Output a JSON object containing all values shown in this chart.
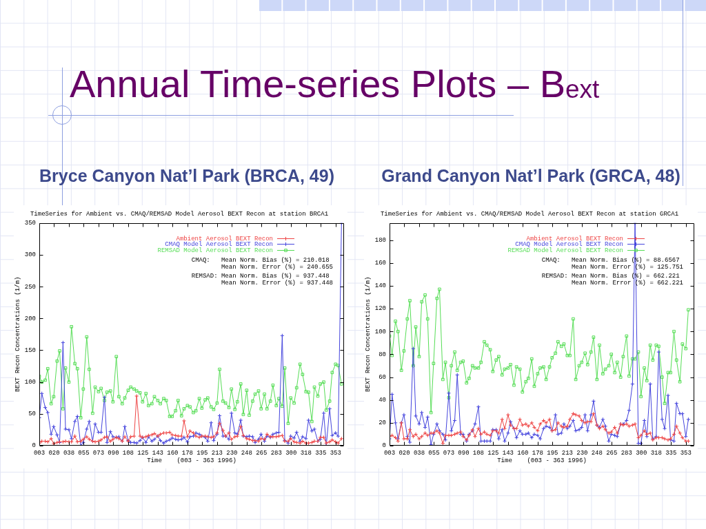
{
  "chart_data": [
    {
      "type": "other",
      "title": "Annual Time-series Plots – B$_{ext}$"
    },
    {
      "type": "line",
      "title": "TimeSeries for Ambient vs. CMAQ/REMSAD Model Aerosol BEXT Recon at station BRCA1",
      "subtitle": "Bryce Canyon Nat’l Park (BRCA, 49)",
      "xlabel": "Time    (003 - 363 1996)",
      "ylabel": "BEXT Recon Concentrations (1/m)",
      "x": [
        3,
        6,
        10,
        13,
        17,
        20,
        24,
        27,
        31,
        34,
        38,
        41,
        45,
        48,
        52,
        55,
        59,
        62,
        66,
        69,
        73,
        76,
        80,
        83,
        87,
        90,
        94,
        97,
        101,
        104,
        108,
        111,
        115,
        118,
        122,
        125,
        129,
        132,
        136,
        139,
        143,
        146,
        150,
        153,
        157,
        160,
        164,
        167,
        171,
        174,
        178,
        181,
        185,
        188,
        192,
        195,
        199,
        202,
        206,
        209,
        213,
        216,
        220,
        223,
        227,
        230,
        234,
        237,
        241,
        244,
        248,
        251,
        255,
        258,
        262,
        265,
        269,
        272,
        276,
        279,
        283,
        286,
        290,
        293,
        297,
        300,
        304,
        307,
        311,
        314,
        318,
        321,
        325,
        328,
        332,
        335,
        339,
        342,
        346,
        349,
        353,
        356,
        360
      ],
      "xlim": [
        3,
        363
      ],
      "xticks": [
        {
          "value": 3,
          "label": "003"
        },
        {
          "value": 20.5,
          "label": "020"
        },
        {
          "value": 38,
          "label": "038"
        },
        {
          "value": 55.5,
          "label": "055"
        },
        {
          "value": 73,
          "label": "073"
        },
        {
          "value": 90.5,
          "label": "090"
        },
        {
          "value": 108,
          "label": "108"
        },
        {
          "value": 125.5,
          "label": "125"
        },
        {
          "value": 143,
          "label": "143"
        },
        {
          "value": 160.5,
          "label": "160"
        },
        {
          "value": 178,
          "label": "178"
        },
        {
          "value": 195.5,
          "label": "195"
        },
        {
          "value": 213,
          "label": "213"
        },
        {
          "value": 230.5,
          "label": "230"
        },
        {
          "value": 248,
          "label": "248"
        },
        {
          "value": 265.5,
          "label": "265"
        },
        {
          "value": 283,
          "label": "283"
        },
        {
          "value": 300.5,
          "label": "300"
        },
        {
          "value": 318,
          "label": "318"
        },
        {
          "value": 335.5,
          "label": "335"
        },
        {
          "value": 353,
          "label": "353"
        }
      ],
      "ylim": [
        0,
        350
      ],
      "yticks": [
        0,
        50,
        100,
        150,
        200,
        250,
        300,
        350
      ],
      "legend": "top right",
      "series": [
        {
          "name": "Ambient Aerosol BEXT Recon",
          "color": "#ee4444",
          "marker": "cross",
          "values": [
            4,
            7,
            7,
            6,
            11,
            3,
            5,
            6,
            6,
            7,
            6,
            6,
            15,
            6,
            7,
            10,
            14,
            10,
            7,
            6,
            7,
            9,
            13,
            14,
            7,
            10,
            13,
            11,
            7,
            14,
            7,
            14,
            15,
            78,
            15,
            13,
            14,
            16,
            17,
            19,
            15,
            18,
            20,
            20,
            21,
            17,
            16,
            15,
            15,
            39,
            14,
            23,
            20,
            15,
            13,
            15,
            15,
            14,
            13,
            14,
            20,
            35,
            24,
            15,
            20,
            10,
            14,
            15,
            30,
            16,
            11,
            10,
            8,
            8,
            7,
            11,
            10,
            18,
            14,
            14,
            14,
            15,
            16,
            7,
            7,
            11,
            6,
            5,
            4,
            7,
            4,
            4,
            5,
            7,
            7,
            13,
            13,
            4,
            6,
            9,
            6,
            4,
            11
          ]
        },
        {
          "name": "CMAQ Model Aerosol BEXT Recon",
          "color": "#4444dd",
          "marker": "cross",
          "values": [
            44,
            82,
            60,
            52,
            18,
            30,
            17,
            5,
            162,
            26,
            25,
            11,
            38,
            46,
            0,
            5,
            26,
            38,
            7,
            34,
            21,
            21,
            76,
            5,
            22,
            14,
            13,
            14,
            7,
            30,
            8,
            5,
            5,
            4,
            8,
            13,
            5,
            14,
            7,
            10,
            15,
            8,
            4,
            7,
            9,
            12,
            10,
            9,
            10,
            13,
            6,
            14,
            15,
            20,
            18,
            15,
            13,
            7,
            36,
            8,
            18,
            47,
            15,
            15,
            10,
            51,
            20,
            18,
            40,
            15,
            14,
            15,
            14,
            5,
            10,
            18,
            7,
            15,
            13,
            18,
            20,
            21,
            173,
            8,
            4,
            15,
            12,
            21,
            7,
            14,
            11,
            40,
            23,
            26,
            7,
            10,
            51,
            0,
            58,
            16,
            20,
            15,
            350
          ]
        },
        {
          "name": "REMSAD Model Aerosol BEXT Recon",
          "color": "#55dd55",
          "marker": "square",
          "values": [
            109,
            100,
            103,
            121,
            66,
            77,
            133,
            149,
            58,
            122,
            100,
            187,
            129,
            121,
            44,
            89,
            171,
            120,
            51,
            92,
            85,
            90,
            71,
            84,
            86,
            69,
            140,
            77,
            66,
            75,
            87,
            92,
            89,
            86,
            83,
            69,
            82,
            63,
            66,
            77,
            71,
            66,
            74,
            71,
            46,
            46,
            55,
            71,
            47,
            58,
            63,
            61,
            52,
            55,
            74,
            59,
            72,
            75,
            61,
            57,
            67,
            120,
            70,
            67,
            60,
            89,
            57,
            69,
            97,
            49,
            87,
            48,
            70,
            81,
            86,
            58,
            81,
            58,
            70,
            95,
            63,
            74,
            62,
            122,
            35,
            75,
            67,
            91,
            128,
            112,
            85,
            84,
            38,
            92,
            78,
            97,
            100,
            56,
            70,
            115,
            128,
            126,
            97
          ]
        }
      ],
      "annotations": [
        "CMAQ:   Mean Norm. Bias (%) = 210.018",
        "Mean Norm. Error (%) = 240.655",
        "REMSAD: Mean Norm. Bias (%) = 937.448",
        "Mean Norm. Error (%) = 937.448"
      ]
    },
    {
      "type": "line",
      "title": "TimeSeries for Ambient vs. CMAQ/REMSAD Model Aerosol BEXT Recon at station GRCA1",
      "subtitle": "Grand Canyon Nat’l Park (GRCA, 48)",
      "xlabel": "Time    (003 - 363 1996)",
      "ylabel": "BEXT Recon Concentrations (1/m)",
      "x": [
        3,
        6,
        10,
        13,
        17,
        20,
        24,
        27,
        31,
        34,
        38,
        41,
        45,
        48,
        52,
        55,
        59,
        62,
        66,
        69,
        73,
        76,
        80,
        83,
        87,
        90,
        94,
        97,
        101,
        104,
        108,
        111,
        115,
        118,
        122,
        125,
        129,
        132,
        136,
        139,
        143,
        146,
        150,
        153,
        157,
        160,
        164,
        167,
        171,
        174,
        178,
        181,
        185,
        188,
        192,
        195,
        199,
        202,
        206,
        209,
        213,
        216,
        220,
        223,
        227,
        230,
        234,
        237,
        241,
        244,
        248,
        251,
        255,
        258,
        262,
        265,
        269,
        272,
        276,
        279,
        283,
        286,
        290,
        293,
        297,
        300,
        304,
        307,
        311,
        314,
        318,
        321,
        325,
        328,
        332,
        335,
        339,
        342,
        346,
        349,
        353,
        356
      ],
      "xlim": [
        3,
        363
      ],
      "xticks": [
        {
          "value": 3,
          "label": "003"
        },
        {
          "value": 20.5,
          "label": "020"
        },
        {
          "value": 38,
          "label": "038"
        },
        {
          "value": 55.5,
          "label": "055"
        },
        {
          "value": 73,
          "label": "073"
        },
        {
          "value": 90.5,
          "label": "090"
        },
        {
          "value": 108,
          "label": "108"
        },
        {
          "value": 125.5,
          "label": "125"
        },
        {
          "value": 143,
          "label": "143"
        },
        {
          "value": 160.5,
          "label": "160"
        },
        {
          "value": 178,
          "label": "178"
        },
        {
          "value": 195.5,
          "label": "195"
        },
        {
          "value": 213,
          "label": "213"
        },
        {
          "value": 230.5,
          "label": "230"
        },
        {
          "value": 248,
          "label": "248"
        },
        {
          "value": 265.5,
          "label": "265"
        },
        {
          "value": 283,
          "label": "283"
        },
        {
          "value": 300.5,
          "label": "300"
        },
        {
          "value": 318,
          "label": "318"
        },
        {
          "value": 335.5,
          "label": "335"
        },
        {
          "value": 353,
          "label": "353"
        }
      ],
      "ylim": [
        0,
        195
      ],
      "yticks": [
        0,
        20,
        40,
        60,
        80,
        100,
        120,
        140,
        160,
        180
      ],
      "legend": "top right",
      "series": [
        {
          "name": "Ambient Aerosol BEXT Recon",
          "color": "#ee4444",
          "marker": "cross",
          "values": [
            8,
            9,
            7,
            4,
            20,
            6,
            6,
            14,
            8,
            10,
            6,
            8,
            11,
            9,
            11,
            11,
            13,
            11,
            2,
            9,
            9,
            9,
            10,
            11,
            12,
            8,
            5,
            9,
            14,
            8,
            15,
            10,
            12,
            10,
            9,
            13,
            13,
            11,
            23,
            15,
            27,
            18,
            15,
            15,
            23,
            18,
            19,
            17,
            20,
            16,
            13,
            19,
            22,
            20,
            23,
            13,
            14,
            20,
            17,
            16,
            17,
            23,
            28,
            27,
            26,
            22,
            20,
            21,
            21,
            28,
            18,
            15,
            17,
            14,
            11,
            12,
            16,
            11,
            19,
            18,
            19,
            17,
            18,
            19,
            7,
            9,
            13,
            10,
            11,
            5,
            7,
            7,
            7,
            6,
            5,
            6,
            10,
            17,
            11,
            7,
            4,
            4
          ]
        },
        {
          "name": "CMAQ Model Aerosol BEXT Recon",
          "color": "#4444dd",
          "marker": "cross",
          "values": [
            6,
            45,
            20,
            6,
            20,
            27,
            8,
            3,
            85,
            26,
            19,
            29,
            16,
            25,
            1,
            10,
            19,
            13,
            10,
            5,
            46,
            13,
            22,
            62,
            10,
            10,
            4,
            10,
            13,
            19,
            34,
            4,
            4,
            4,
            4,
            14,
            14,
            6,
            14,
            4,
            11,
            21,
            15,
            7,
            13,
            10,
            10,
            11,
            7,
            10,
            9,
            6,
            15,
            17,
            16,
            13,
            27,
            10,
            11,
            19,
            15,
            17,
            22,
            13,
            14,
            16,
            27,
            13,
            27,
            39,
            18,
            16,
            23,
            17,
            4,
            10,
            9,
            8,
            19,
            19,
            22,
            31,
            54,
            195,
            2,
            2,
            22,
            8,
            54,
            6,
            8,
            82,
            23,
            15,
            44,
            5,
            4,
            37,
            28,
            28,
            8,
            23
          ]
        },
        {
          "name": "REMSAD Model Aerosol BEXT Recon",
          "color": "#55dd55",
          "marker": "square",
          "values": [
            96,
            79,
            109,
            100,
            66,
            83,
            111,
            127,
            70,
            104,
            78,
            126,
            132,
            111,
            29,
            72,
            129,
            137,
            58,
            73,
            42,
            70,
            82,
            66,
            73,
            74,
            55,
            59,
            70,
            68,
            68,
            73,
            91,
            88,
            84,
            65,
            75,
            78,
            62,
            67,
            68,
            71,
            53,
            69,
            67,
            47,
            56,
            59,
            76,
            52,
            63,
            68,
            69,
            58,
            69,
            77,
            81,
            91,
            87,
            89,
            79,
            79,
            111,
            58,
            70,
            73,
            81,
            71,
            82,
            95,
            58,
            88,
            63,
            67,
            70,
            80,
            64,
            73,
            60,
            78,
            96,
            61,
            76,
            76,
            82,
            43,
            68,
            57,
            88,
            75,
            88,
            87,
            60,
            37,
            64,
            64,
            100,
            75,
            56,
            89,
            85,
            119
          ]
        }
      ],
      "annotations": [
        "CMAQ:   Mean Norm. Bias (%) = 88.6567",
        "Mean Norm. Error (%) = 125.751",
        "REMSAD: Mean Norm. Bias (%) = 662.221",
        "Mean Norm. Error (%) = 662.221"
      ]
    }
  ]
}
